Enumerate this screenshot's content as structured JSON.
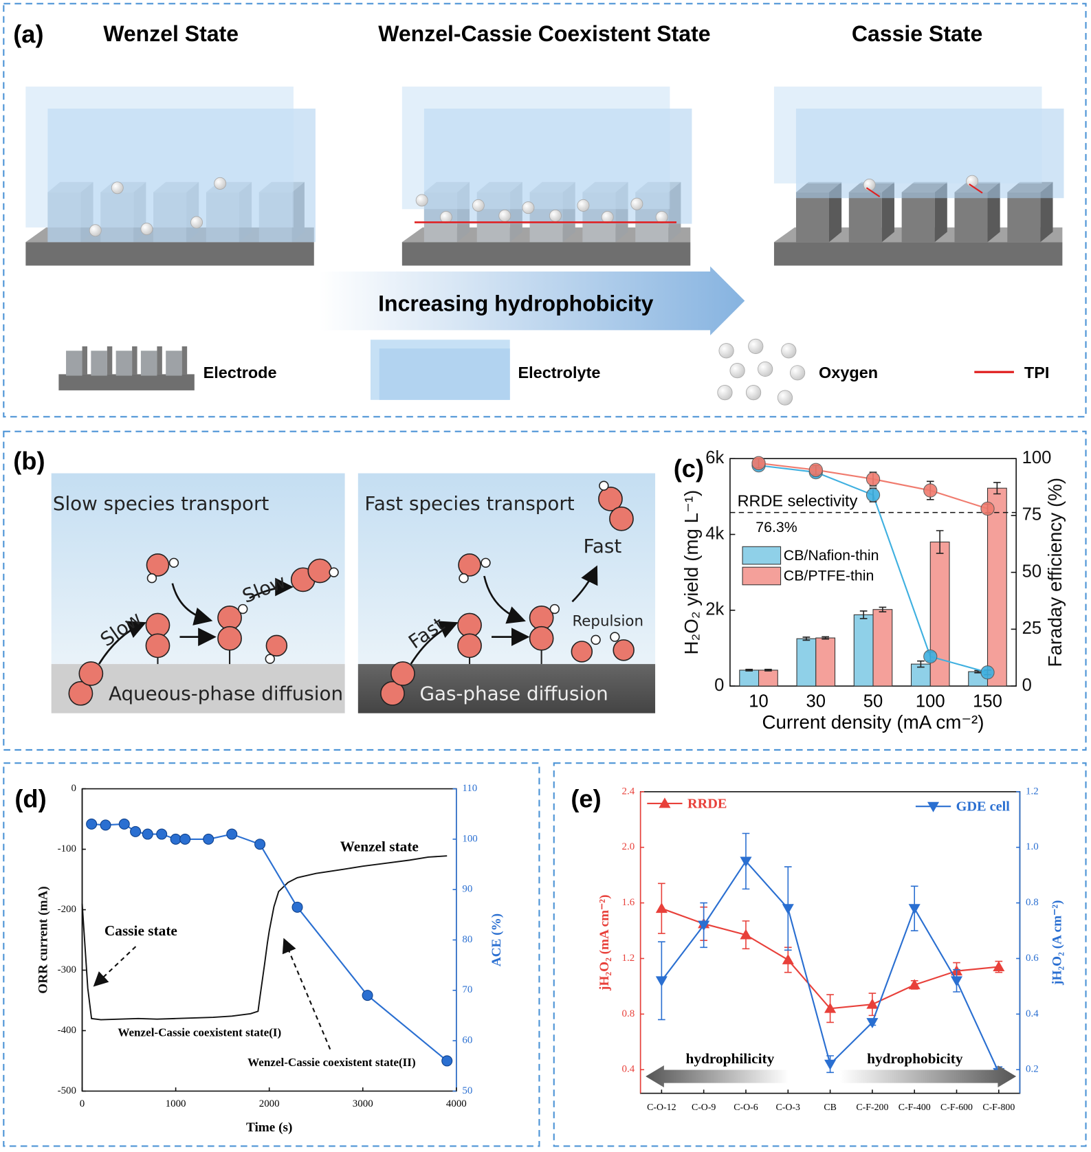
{
  "panels": {
    "a": {
      "label": "(a)",
      "titles": [
        "Wenzel State",
        "Wenzel-Cassie Coexistent State",
        "Cassie State"
      ],
      "arrow": "Increasing hydrophobicity",
      "legend": [
        "Electrode",
        "Electrolyte",
        "Oxygen",
        "TPI"
      ]
    },
    "b": {
      "label": "(b)",
      "left": {
        "title": "Slow species transport",
        "labels": [
          "Slow",
          "Slow"
        ],
        "base": "Aqueous-phase diffusion"
      },
      "right": {
        "title": "Fast species transport",
        "labels": [
          "Fast",
          "Fast",
          "Repulsion"
        ],
        "base": "Gas-phase diffusion"
      }
    }
  },
  "chart_data": [
    {
      "type": "bar",
      "label": "(c)",
      "categories": [
        "10",
        "30",
        "50",
        "100",
        "150"
      ],
      "xlabel": "Current density (mA cm⁻²)",
      "ylabel": "H₂O₂ yield (mg L⁻¹)",
      "y2label": "Faraday efficiency (%)",
      "ylim": [
        0,
        6000
      ],
      "yticks": [
        0,
        {
          "value": 2000,
          "label": "2k"
        },
        {
          "value": 4000,
          "label": "4k"
        },
        {
          "value": 6000,
          "label": "6k"
        }
      ],
      "y2lim": [
        0,
        100
      ],
      "y2ticks": [
        0,
        25,
        50,
        75,
        100
      ],
      "series": [
        {
          "name": "CB/Nafion-thin",
          "color": "#8fd0e8",
          "values": [
            420,
            1250,
            1880,
            580,
            380
          ],
          "errors": [
            20,
            40,
            100,
            80,
            30
          ]
        },
        {
          "name": "CB/PTFE-thin",
          "color": "#f4a09a",
          "values": [
            420,
            1270,
            2020,
            3800,
            5220
          ],
          "errors": [
            20,
            30,
            60,
            300,
            150
          ]
        },
        {
          "type": "line",
          "axis": "y2",
          "color": "#3fb0e0",
          "values": [
            97,
            94,
            84,
            13,
            6
          ],
          "errors": [
            1,
            2,
            3,
            2,
            1
          ]
        },
        {
          "type": "line",
          "axis": "y2",
          "color": "#f07b6e",
          "values": [
            98,
            95,
            91,
            86,
            78
          ],
          "errors": [
            2,
            2,
            3,
            4,
            2
          ]
        }
      ],
      "reference_line": 76.3,
      "annotations": [
        "RRDE selectivity",
        "76.3%"
      ]
    },
    {
      "type": "line",
      "label": "(d)",
      "xlabel": "Time (s)",
      "ylabel": "ORR current (mA)",
      "y2label": "ACE (%)",
      "xlim": [
        0,
        4000
      ],
      "xticks": [
        0,
        1000,
        2000,
        3000,
        4000
      ],
      "ylim": [
        -500,
        0
      ],
      "yticks": [
        0,
        -100,
        -200,
        -300,
        -400,
        -500
      ],
      "y2lim": [
        50,
        110
      ],
      "y2ticks": [
        50,
        60,
        70,
        80,
        90,
        100,
        110
      ],
      "series": [
        {
          "color": "#111111",
          "x": [
            0,
            60,
            100,
            200,
            400,
            600,
            800,
            1000,
            1200,
            1400,
            1600,
            1800,
            1880,
            1900,
            1950,
            1980,
            2000,
            2050,
            2100,
            2200,
            2300,
            2500,
            2800,
            3000,
            3200,
            3500,
            3700,
            3900
          ],
          "values": [
            -190,
            -330,
            -380,
            -382,
            -381,
            -380,
            -381,
            -380,
            -379,
            -378,
            -376,
            -372,
            -368,
            -345,
            -290,
            -255,
            -235,
            -195,
            -170,
            -155,
            -147,
            -140,
            -133,
            -128,
            -124,
            -118,
            -113,
            -111
          ]
        },
        {
          "axis": "y2",
          "color": "#2a6fd1",
          "marker": "circle",
          "x": [
            100,
            250,
            450,
            570,
            700,
            850,
            1000,
            1100,
            1350,
            1600,
            1900,
            2300,
            3050,
            3900
          ],
          "values": [
            103,
            102.8,
            103,
            101.5,
            101,
            101,
            100,
            100,
            100,
            101,
            99,
            86.5,
            69,
            56
          ]
        }
      ],
      "annotations": [
        "Wenzel state",
        "Cassie state",
        "Wenzel-Cassie coexistent state(I)",
        "Wenzel-Cassie coexistent state(II)"
      ]
    },
    {
      "type": "line",
      "label": "(e)",
      "categories": [
        "C-O-12",
        "C-O-9",
        "C-O-6",
        "C-O-3",
        "CB",
        "C-F-200",
        "C-F-400",
        "C-F-600",
        "C-F-800"
      ],
      "ylabel": "jH₂O₂ (mA cm⁻²)",
      "y2label": "jH₂O₂ (A cm⁻²)",
      "ylim": [
        0.23,
        2.4
      ],
      "yticks": [
        0.4,
        0.8,
        1.2,
        1.6,
        {
          "value": 2,
          "label": "2.0"
        },
        2.4
      ],
      "y2lim": [
        0.115,
        1.2
      ],
      "y2ticks": [
        0.2,
        0.4,
        0.6,
        0.8,
        {
          "value": 1,
          "label": "1.0"
        },
        1.2
      ],
      "series": [
        {
          "name": "RRDE",
          "color": "#e8403a",
          "marker": "triangle-up",
          "values": [
            1.56,
            1.45,
            1.37,
            1.19,
            0.84,
            0.87,
            1.01,
            1.11,
            1.14
          ],
          "errors": [
            0.18,
            0.12,
            0.1,
            0.09,
            0.1,
            0.08,
            0.03,
            0.06,
            0.04
          ]
        },
        {
          "name": "GDE cell",
          "axis": "y2",
          "color": "#2a6fd1",
          "marker": "triangle-down",
          "values": [
            0.52,
            0.72,
            0.95,
            0.78,
            0.22,
            0.37,
            0.78,
            0.52,
            0.19
          ],
          "errors": [
            0.14,
            0.08,
            0.1,
            0.15,
            0.03,
            0.01,
            0.08,
            0.04,
            0.02
          ]
        }
      ],
      "annotations": [
        "hydrophilicity",
        "hydrophobicity"
      ]
    }
  ]
}
